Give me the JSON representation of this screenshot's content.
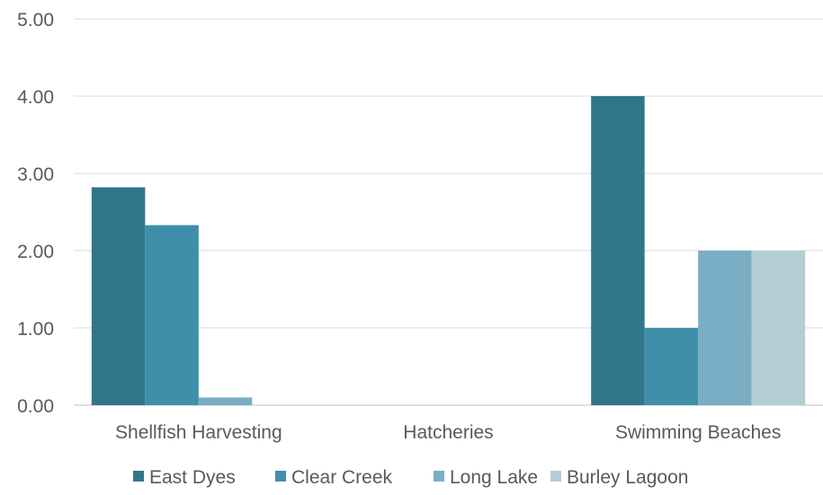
{
  "chart_data": {
    "type": "bar",
    "categories": [
      "Shellfish Harvesting",
      "Hatcheries",
      "Swimming Beaches"
    ],
    "series": [
      {
        "name": "East Dyes",
        "color": "#31758B",
        "values": [
          2.82,
          0,
          4.0
        ]
      },
      {
        "name": "Clear Creek",
        "color": "#3F8FAA",
        "values": [
          2.33,
          0,
          1.0
        ]
      },
      {
        "name": "Long Lake",
        "color": "#7AAEC4",
        "values": [
          0.1,
          0,
          2.0
        ]
      },
      {
        "name": "Burley Lagoon",
        "color": "#B5CCD7",
        "values": [
          0,
          0,
          2.0
        ]
      }
    ],
    "y_ticks": [
      "0.00",
      "1.00",
      "2.00",
      "3.00",
      "4.00",
      "5.00"
    ],
    "ylim": [
      0,
      5
    ],
    "grid": true,
    "legend_position": "bottom"
  }
}
